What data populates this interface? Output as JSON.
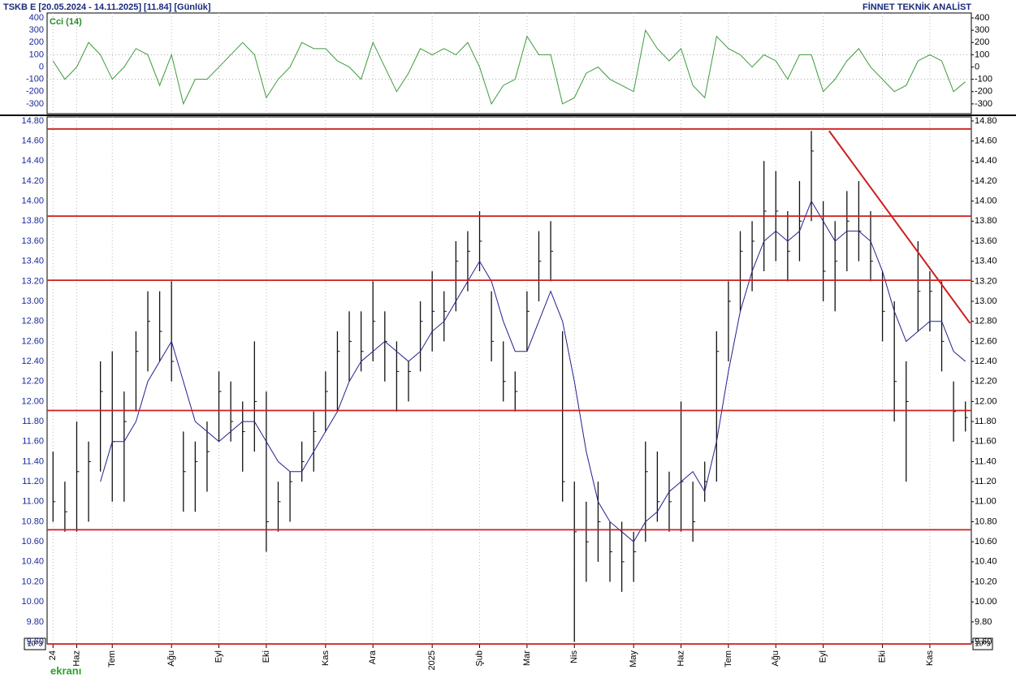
{
  "header": {
    "title": "TSKB  E  [20.05.2024 - 14.11.2025]  [11.84]  [Günlük]",
    "brand": "FİNNET TEKNİK ANALİST",
    "scale_note": "10^3",
    "logo": "ekranı"
  },
  "chart_data": [
    {
      "type": "line",
      "title": "Cci (14)",
      "color": "#3c9b3c",
      "ylim": [
        -380,
        440
      ],
      "yticks": [
        400,
        300,
        200,
        100,
        0,
        -100,
        -200,
        -300
      ],
      "grid_lines": [
        100,
        -100
      ],
      "values": [
        50,
        -100,
        0,
        200,
        100,
        -100,
        0,
        150,
        100,
        -150,
        100,
        -300,
        -100,
        -100,
        0,
        100,
        200,
        100,
        -250,
        -100,
        0,
        200,
        150,
        150,
        50,
        0,
        -100,
        200,
        0,
        -200,
        -50,
        150,
        100,
        150,
        100,
        200,
        0,
        -300,
        -150,
        -100,
        250,
        100,
        100,
        -300,
        -250,
        -50,
        0,
        -100,
        -150,
        -200,
        300,
        150,
        50,
        150,
        -150,
        -250,
        250,
        150,
        100,
        0,
        100,
        50,
        -100,
        100,
        100,
        -200,
        -100,
        50,
        150,
        0,
        -100,
        -200,
        -150,
        50,
        100,
        50,
        -200,
        -120
      ]
    },
    {
      "type": "ohlc",
      "ylim": [
        9.58,
        14.84
      ],
      "yticks": [
        {
          "value": 9.6,
          "label": "9.60"
        },
        {
          "value": 9.8,
          "label": "9.80"
        },
        {
          "value": 10.0,
          "label": "10.00"
        },
        {
          "value": 10.2,
          "label": "10.20"
        },
        {
          "value": 10.4,
          "label": "10.40"
        },
        {
          "value": 10.6,
          "label": "10.60"
        },
        {
          "value": 10.8,
          "label": "10.80"
        },
        {
          "value": 11.0,
          "label": "11.00"
        },
        {
          "value": 11.2,
          "label": "11.20"
        },
        {
          "value": 11.4,
          "label": "11.40"
        },
        {
          "value": 11.6,
          "label": "11.60"
        },
        {
          "value": 11.8,
          "label": "11.80"
        },
        {
          "value": 12.0,
          "label": "12.00"
        },
        {
          "value": 12.2,
          "label": "12.20"
        },
        {
          "value": 12.4,
          "label": "12.40"
        },
        {
          "value": 12.6,
          "label": "12.60"
        },
        {
          "value": 12.8,
          "label": "12.80"
        },
        {
          "value": 13.0,
          "label": "13.00"
        },
        {
          "value": 13.2,
          "label": "13.20"
        },
        {
          "value": 13.4,
          "label": "13.40"
        },
        {
          "value": 13.6,
          "label": "13.60"
        },
        {
          "value": 13.8,
          "label": "13.80"
        },
        {
          "value": 14.0,
          "label": "14.00"
        },
        {
          "value": 14.2,
          "label": "14.20"
        },
        {
          "value": 14.4,
          "label": "14.40"
        },
        {
          "value": 14.6,
          "label": "14.60"
        },
        {
          "value": 14.8,
          "label": "14.80"
        }
      ],
      "categories": [
        "24",
        null,
        "Haz",
        null,
        null,
        "Tem",
        null,
        null,
        null,
        null,
        "Ağu",
        null,
        null,
        null,
        "Eyl",
        null,
        null,
        null,
        "Eki",
        null,
        null,
        null,
        null,
        "Kas",
        null,
        null,
        null,
        "Ara",
        null,
        null,
        null,
        null,
        "2025",
        null,
        null,
        null,
        "Şub",
        null,
        null,
        null,
        "Mar",
        null,
        null,
        null,
        "Nis",
        null,
        null,
        null,
        null,
        "May",
        null,
        null,
        null,
        "Haz",
        null,
        null,
        null,
        "Tem",
        null,
        null,
        null,
        "Ağu",
        null,
        null,
        null,
        "Eyl",
        null,
        null,
        null,
        null,
        "Eki",
        null,
        null,
        null,
        "Kas",
        null,
        null,
        null
      ],
      "high": [
        11.5,
        11.2,
        11.8,
        11.6,
        12.4,
        12.5,
        12.1,
        12.7,
        13.1,
        13.1,
        13.2,
        11.7,
        11.6,
        11.8,
        12.3,
        12.2,
        12.0,
        12.6,
        12.1,
        11.2,
        11.3,
        11.6,
        11.9,
        12.3,
        12.7,
        12.9,
        12.9,
        13.2,
        12.9,
        12.6,
        12.4,
        13.0,
        13.3,
        13.1,
        13.6,
        13.7,
        13.9,
        13.1,
        12.6,
        12.3,
        13.1,
        13.7,
        13.8,
        12.7,
        11.2,
        11.0,
        11.2,
        10.8,
        10.8,
        10.7,
        11.6,
        11.5,
        11.3,
        12.0,
        11.2,
        11.4,
        12.7,
        13.2,
        13.7,
        13.8,
        14.4,
        14.3,
        13.9,
        14.2,
        14.7,
        14.0,
        13.8,
        14.1,
        14.2,
        13.9,
        13.3,
        13.0,
        12.4,
        13.6,
        13.3,
        13.2,
        12.2,
        12.0
      ],
      "low": [
        10.8,
        10.7,
        10.7,
        10.8,
        11.3,
        11.0,
        11.0,
        11.9,
        12.3,
        12.4,
        12.2,
        10.9,
        10.9,
        11.1,
        11.6,
        11.6,
        11.3,
        11.5,
        10.5,
        10.7,
        10.8,
        11.2,
        11.3,
        11.7,
        11.9,
        12.2,
        12.3,
        12.4,
        12.2,
        11.9,
        12.0,
        12.3,
        12.5,
        12.6,
        12.9,
        13.1,
        13.3,
        12.4,
        12.0,
        11.9,
        12.5,
        13.0,
        13.2,
        11.0,
        9.6,
        10.2,
        10.4,
        10.2,
        10.1,
        10.2,
        10.6,
        10.8,
        10.7,
        10.7,
        10.6,
        11.0,
        11.2,
        12.4,
        12.9,
        13.1,
        13.3,
        13.4,
        13.2,
        13.4,
        13.8,
        13.0,
        12.9,
        13.3,
        13.4,
        13.2,
        12.6,
        11.8,
        11.2,
        12.7,
        12.7,
        12.3,
        11.6,
        11.7
      ],
      "close": [
        11.0,
        10.9,
        11.3,
        11.4,
        12.1,
        11.6,
        11.8,
        12.5,
        12.8,
        12.7,
        12.4,
        11.3,
        11.4,
        11.5,
        12.1,
        11.8,
        11.7,
        12.0,
        10.8,
        11.0,
        11.2,
        11.4,
        11.7,
        12.1,
        12.5,
        12.6,
        12.5,
        12.8,
        12.6,
        12.3,
        12.3,
        12.8,
        12.9,
        12.9,
        13.4,
        13.5,
        13.6,
        12.6,
        12.2,
        12.1,
        12.9,
        13.4,
        13.5,
        11.2,
        10.7,
        10.6,
        10.8,
        10.5,
        10.4,
        10.5,
        11.3,
        11.0,
        11.0,
        11.2,
        10.8,
        11.2,
        12.5,
        13.0,
        13.5,
        13.6,
        13.9,
        13.9,
        13.5,
        13.8,
        14.5,
        13.3,
        13.4,
        13.8,
        13.7,
        13.4,
        12.9,
        12.2,
        12.0,
        13.1,
        13.1,
        12.6,
        11.9,
        11.84
      ],
      "color": "#111111",
      "moving_average": {
        "color": "#20208f",
        "values": [
          null,
          null,
          null,
          null,
          11.2,
          11.6,
          11.6,
          11.8,
          12.2,
          12.4,
          12.6,
          12.2,
          11.8,
          11.7,
          11.6,
          11.7,
          11.8,
          11.8,
          11.6,
          11.4,
          11.3,
          11.3,
          11.5,
          11.7,
          11.9,
          12.2,
          12.4,
          12.5,
          12.6,
          12.5,
          12.4,
          12.5,
          12.7,
          12.8,
          13.0,
          13.2,
          13.4,
          13.2,
          12.8,
          12.5,
          12.5,
          12.8,
          13.1,
          12.8,
          12.2,
          11.5,
          11.0,
          10.8,
          10.7,
          10.6,
          10.8,
          10.9,
          11.1,
          11.2,
          11.3,
          11.1,
          11.6,
          12.3,
          12.9,
          13.3,
          13.6,
          13.7,
          13.6,
          13.7,
          14.0,
          13.8,
          13.6,
          13.7,
          13.7,
          13.6,
          13.3,
          12.9,
          12.6,
          12.7,
          12.8,
          12.8,
          12.5,
          12.4
        ]
      },
      "levels": {
        "color": "#cc1f1f",
        "values": [
          14.72,
          13.85,
          13.21,
          11.91,
          10.72,
          9.58
        ]
      },
      "trendline": {
        "color": "#cc1f1f",
        "x": [
          65.5,
          77.4
        ],
        "y": [
          14.7,
          12.78
        ]
      }
    }
  ]
}
